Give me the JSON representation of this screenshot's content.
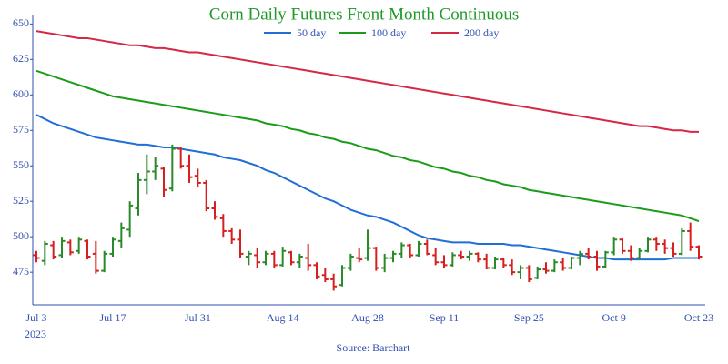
{
  "chart_data": {
    "type": "ohlc",
    "title": "Corn Daily Futures Front Month Continuous",
    "source": "Source: Barchart",
    "x_year": "2023",
    "categories": [
      "Jul 3",
      null,
      null,
      null,
      null,
      null,
      null,
      null,
      null,
      "Jul 17",
      null,
      null,
      null,
      null,
      null,
      null,
      null,
      null,
      null,
      "Jul 31",
      null,
      null,
      null,
      null,
      null,
      null,
      null,
      null,
      null,
      "Aug 14",
      null,
      null,
      null,
      null,
      null,
      null,
      null,
      null,
      null,
      "Aug 28",
      null,
      null,
      null,
      null,
      null,
      null,
      null,
      null,
      "Sep 11",
      null,
      null,
      null,
      null,
      null,
      null,
      null,
      null,
      null,
      "Sep 25",
      null,
      null,
      null,
      null,
      null,
      null,
      null,
      null,
      null,
      "Oct 9",
      null,
      null,
      null,
      null,
      null,
      null,
      null,
      null,
      null,
      "Oct 23"
    ],
    "open": [
      487,
      483,
      494,
      487,
      496,
      490,
      497,
      488,
      476,
      488,
      497,
      505,
      520,
      540,
      546,
      548,
      534,
      562,
      550,
      543,
      538,
      520,
      513,
      504,
      498,
      486,
      487,
      482,
      488,
      480,
      489,
      482,
      485,
      480,
      473,
      470,
      466,
      478,
      485,
      485,
      492,
      478,
      485,
      488,
      494,
      487,
      495,
      487,
      482,
      480,
      487,
      486,
      488,
      484,
      478,
      484,
      480,
      475,
      478,
      471,
      477,
      476,
      482,
      478,
      485,
      488,
      486,
      479,
      489,
      498,
      490,
      485,
      490,
      498,
      495,
      492,
      488,
      504,
      493
    ],
    "high": [
      490,
      497,
      497,
      500,
      498,
      500,
      498,
      497,
      490,
      500,
      510,
      525,
      545,
      558,
      556,
      549,
      565,
      563,
      558,
      548,
      540,
      525,
      516,
      506,
      505,
      490,
      492,
      490,
      490,
      493,
      490,
      488,
      495,
      482,
      478,
      474,
      480,
      488,
      492,
      505,
      493,
      488,
      490,
      496,
      495,
      497,
      498,
      492,
      487,
      489,
      490,
      490,
      489,
      488,
      486,
      485,
      484,
      480,
      480,
      479,
      482,
      484,
      485,
      486,
      490,
      492,
      490,
      490,
      500,
      499,
      494,
      492,
      500,
      500,
      498,
      496,
      506,
      510,
      494
    ],
    "low": [
      482,
      480,
      484,
      485,
      487,
      488,
      484,
      474,
      475,
      486,
      492,
      500,
      515,
      530,
      540,
      528,
      532,
      548,
      538,
      535,
      518,
      512,
      500,
      495,
      485,
      480,
      478,
      480,
      478,
      479,
      480,
      478,
      476,
      470,
      468,
      462,
      465,
      476,
      482,
      483,
      476,
      475,
      482,
      485,
      485,
      486,
      487,
      480,
      478,
      479,
      484,
      483,
      482,
      477,
      477,
      478,
      473,
      470,
      468,
      470,
      474,
      475,
      476,
      477,
      480,
      484,
      476,
      478,
      487,
      488,
      483,
      484,
      489,
      490,
      488,
      486,
      487,
      490,
      484
    ],
    "close": [
      485,
      495,
      486,
      497,
      489,
      498,
      486,
      476,
      488,
      498,
      506,
      522,
      540,
      546,
      550,
      533,
      562,
      550,
      542,
      538,
      520,
      514,
      504,
      498,
      488,
      488,
      482,
      488,
      480,
      490,
      482,
      486,
      480,
      472,
      470,
      465,
      478,
      486,
      484,
      492,
      478,
      485,
      488,
      494,
      487,
      495,
      488,
      482,
      480,
      487,
      486,
      488,
      484,
      478,
      484,
      480,
      475,
      478,
      470,
      477,
      476,
      482,
      478,
      485,
      488,
      486,
      479,
      489,
      498,
      490,
      485,
      490,
      498,
      495,
      492,
      488,
      504,
      493,
      486
    ],
    "up_color": "#2a8a2a",
    "down_color": "#d62020",
    "series": [
      {
        "name": "50 day",
        "color": "#1f6fd6",
        "values": [
          586,
          583,
          580,
          578,
          576,
          574,
          572,
          570,
          569,
          568,
          567,
          566,
          565,
          565,
          564,
          563,
          563,
          562,
          561,
          560,
          559,
          558,
          556,
          555,
          554,
          552,
          550,
          547,
          545,
          542,
          539,
          536,
          533,
          530,
          527,
          525,
          522,
          519,
          517,
          515,
          514,
          512,
          510,
          507,
          504,
          501,
          499,
          498,
          497,
          496,
          496,
          496,
          495,
          495,
          495,
          495,
          494,
          494,
          493,
          492,
          491,
          490,
          489,
          488,
          487,
          486,
          485,
          485,
          484,
          484,
          484,
          484,
          484,
          484,
          484,
          485,
          485,
          485,
          485
        ]
      },
      {
        "name": "100 day",
        "color": "#1a9c1a",
        "values": [
          617,
          615,
          613,
          611,
          609,
          607,
          605,
          603,
          601,
          599,
          598,
          597,
          596,
          595,
          594,
          593,
          592,
          591,
          590,
          589,
          588,
          587,
          586,
          585,
          584,
          583,
          582,
          580,
          579,
          578,
          576,
          575,
          573,
          572,
          570,
          569,
          567,
          566,
          564,
          562,
          561,
          559,
          557,
          556,
          554,
          553,
          551,
          549,
          548,
          546,
          545,
          543,
          542,
          540,
          539,
          537,
          536,
          535,
          533,
          532,
          531,
          530,
          529,
          528,
          527,
          526,
          525,
          524,
          523,
          522,
          521,
          520,
          519,
          518,
          517,
          516,
          515,
          513,
          511
        ]
      },
      {
        "name": "200 day",
        "color": "#d62746",
        "values": [
          645,
          644,
          643,
          642,
          641,
          640,
          640,
          639,
          638,
          637,
          636,
          635,
          635,
          634,
          633,
          633,
          632,
          631,
          630,
          630,
          629,
          628,
          627,
          626,
          625,
          624,
          623,
          622,
          621,
          620,
          619,
          618,
          617,
          616,
          615,
          614,
          613,
          612,
          611,
          610,
          609,
          608,
          607,
          606,
          605,
          604,
          603,
          602,
          601,
          600,
          599,
          598,
          597,
          596,
          595,
          594,
          593,
          592,
          591,
          590,
          589,
          588,
          587,
          586,
          585,
          584,
          583,
          582,
          581,
          580,
          579,
          578,
          578,
          577,
          576,
          575,
          575,
          574,
          574
        ]
      }
    ],
    "ylim": [
      452,
      656
    ],
    "yticks": [
      475,
      500,
      525,
      550,
      575,
      600,
      625,
      650
    ],
    "grid": false,
    "legend": "top"
  }
}
